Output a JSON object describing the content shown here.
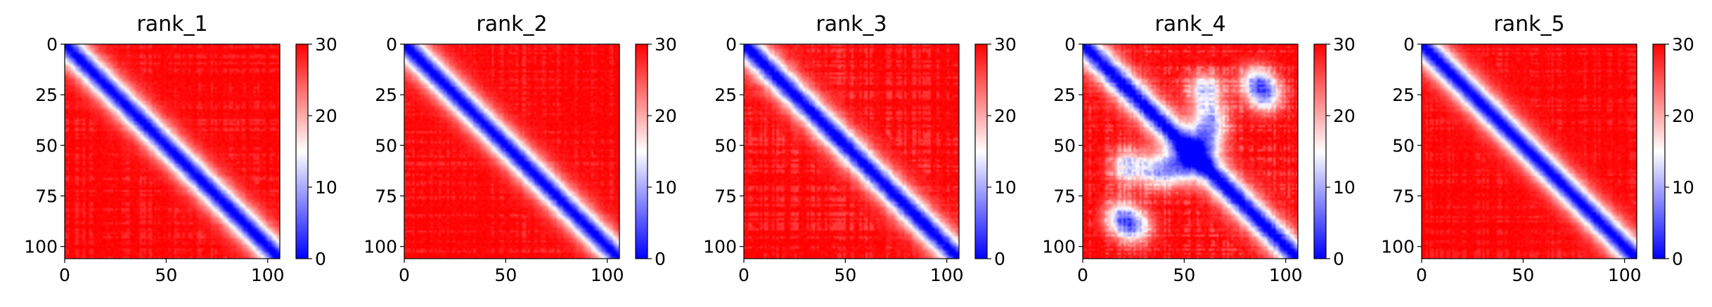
{
  "chart_data": [
    {
      "type": "heatmap",
      "title": "rank_1",
      "colormap": "bwr",
      "colorbar": {
        "range": [
          0,
          30
        ],
        "ticks": [
          0,
          10,
          20,
          30
        ]
      },
      "xlim": [
        0,
        106
      ],
      "ylim": [
        106,
        0
      ],
      "xticks": [
        0,
        50,
        100
      ],
      "yticks": [
        0,
        25,
        50,
        75,
        100
      ],
      "diagonal_band_width": 9,
      "pattern_contrast": 0.15,
      "contact_blobs": []
    },
    {
      "type": "heatmap",
      "title": "rank_2",
      "colormap": "bwr",
      "colorbar": {
        "range": [
          0,
          30
        ],
        "ticks": [
          0,
          10,
          20,
          30
        ]
      },
      "xlim": [
        0,
        106
      ],
      "ylim": [
        106,
        0
      ],
      "xticks": [
        0,
        50,
        100
      ],
      "yticks": [
        0,
        25,
        50,
        75,
        100
      ],
      "diagonal_band_width": 9,
      "pattern_contrast": 0.15,
      "contact_blobs": []
    },
    {
      "type": "heatmap",
      "title": "rank_3",
      "colormap": "bwr",
      "colorbar": {
        "range": [
          0,
          30
        ],
        "ticks": [
          0,
          10,
          20,
          30
        ]
      },
      "xlim": [
        0,
        106
      ],
      "ylim": [
        106,
        0
      ],
      "xticks": [
        0,
        50,
        100
      ],
      "yticks": [
        0,
        25,
        50,
        75,
        100
      ],
      "diagonal_band_width": 9,
      "pattern_contrast": 0.2,
      "contact_blobs": []
    },
    {
      "type": "heatmap",
      "title": "rank_4",
      "colormap": "bwr",
      "colorbar": {
        "range": [
          0,
          30
        ],
        "ticks": [
          0,
          10,
          20,
          30
        ]
      },
      "xlim": [
        0,
        106
      ],
      "ylim": [
        106,
        0
      ],
      "xticks": [
        0,
        50,
        100
      ],
      "yticks": [
        0,
        25,
        50,
        75,
        100
      ],
      "diagonal_band_width": 9,
      "pattern_contrast": 0.25,
      "contact_blobs": [
        [
          22,
          60
        ],
        [
          60,
          22
        ],
        [
          37,
          62
        ],
        [
          62,
          37
        ],
        [
          85,
          18
        ],
        [
          18,
          85
        ],
        [
          90,
          25
        ],
        [
          25,
          90
        ],
        [
          48,
          60
        ],
        [
          60,
          48
        ]
      ]
    },
    {
      "type": "heatmap",
      "title": "rank_5",
      "colormap": "bwr",
      "colorbar": {
        "range": [
          0,
          30
        ],
        "ticks": [
          0,
          10,
          20,
          30
        ]
      },
      "xlim": [
        0,
        106
      ],
      "ylim": [
        106,
        0
      ],
      "xticks": [
        0,
        50,
        100
      ],
      "yticks": [
        0,
        25,
        50,
        75,
        100
      ],
      "diagonal_band_width": 9,
      "pattern_contrast": 0.15,
      "contact_blobs": []
    }
  ]
}
